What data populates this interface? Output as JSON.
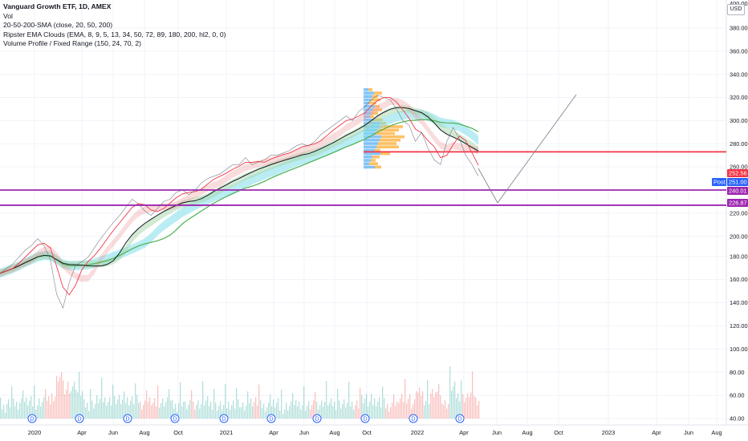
{
  "legend": {
    "title": "Vanguard Growth ETF, 1D, AMEX",
    "vol": "Vol",
    "sma": "20-50-200-SMA (close, 20, 50, 200)",
    "ema_clouds": "Ripster EMA Clouds (EMA, 8, 9, 5, 13, 34, 50, 72, 89, 180, 200, hl2, 0, 0)",
    "volume_profile": "Volume Profile / Fixed Range (150, 24, 70, 2)"
  },
  "currency": "USD",
  "chart_data": {
    "type": "line",
    "title": "Vanguard Growth ETF, 1D, AMEX",
    "yaxis": {
      "ticks": [
        40,
        60,
        80,
        100,
        120,
        140,
        160,
        180,
        200,
        220,
        260,
        280,
        300,
        320,
        340,
        360,
        380
      ],
      "top_partial": "400.00"
    },
    "xaxis": {
      "ticks": [
        "2020",
        "Apr",
        "Jun",
        "Aug",
        "Oct",
        "2021",
        "Apr",
        "Jun",
        "Aug",
        "Oct",
        "2022",
        "Apr",
        "Jun",
        "Aug",
        "Oct",
        "2023",
        "Apr",
        "Jun",
        "Aug"
      ]
    },
    "series": [
      {
        "values": [
          168,
          172,
          176,
          182,
          188,
          192,
          198,
          192,
          180,
          150,
          138,
          160,
          175,
          178,
          182,
          190,
          198,
          205,
          212,
          218,
          225,
          232,
          228,
          222,
          218,
          224,
          230,
          232,
          238,
          240,
          236,
          240,
          246,
          250,
          252,
          254,
          258,
          262,
          262,
          268,
          262,
          264,
          266,
          270,
          270,
          272,
          274,
          278,
          280,
          278,
          282,
          288,
          292,
          296,
          300,
          304,
          300,
          308,
          312,
          318,
          322,
          320,
          318,
          310,
          300,
          296,
          282,
          290,
          276,
          266,
          262,
          282,
          294,
          284,
          270,
          262,
          252
        ]
      }
    ],
    "price_levels": [
      {
        "value": 252.56,
        "label": "252.56",
        "color": "#f23645"
      },
      {
        "value": 251.0,
        "label": "251.00",
        "color": "#2962ff"
      },
      {
        "value": 240.01,
        "label": "240.01",
        "color": "#9c27b0"
      },
      {
        "value": 226.87,
        "label": "226.87",
        "color": "#9c27b0"
      }
    ],
    "horizontal_lines": [
      {
        "value": 273,
        "color": "#f23645"
      },
      {
        "value": 240.01,
        "color": "#9c27b0"
      },
      {
        "value": 226.87,
        "color": "#9c27b0"
      }
    ],
    "post_label": "Post",
    "dividend_marker": "D",
    "grid": true
  }
}
